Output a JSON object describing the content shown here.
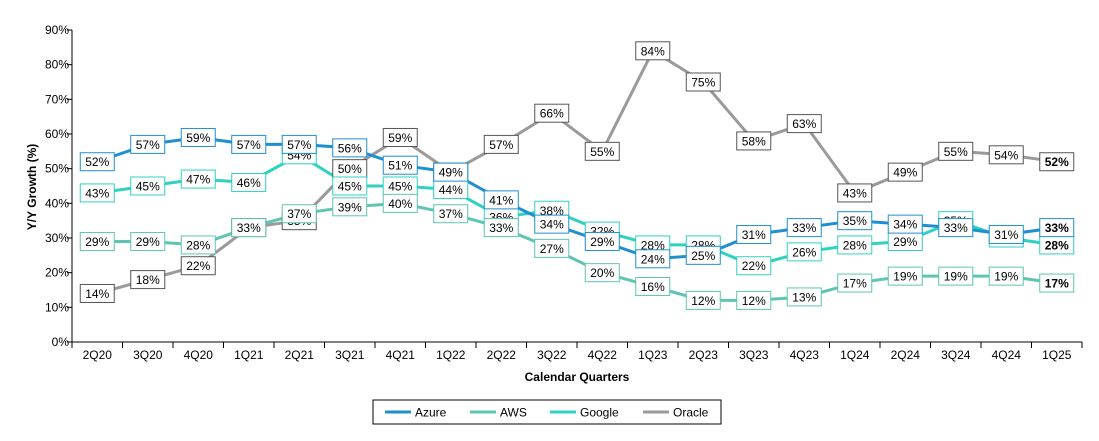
{
  "chart_data": {
    "type": "line",
    "ylabel": "Y/Y Growth (%)",
    "xlabel": "Calendar Quarters",
    "ylim": [
      0,
      90
    ],
    "yticks": [
      0,
      10,
      20,
      30,
      40,
      50,
      60,
      70,
      80,
      90
    ],
    "ytick_labels": [
      "0%",
      "10%",
      "20%",
      "30%",
      "40%",
      "50%",
      "60%",
      "70%",
      "80%",
      "90%"
    ],
    "categories": [
      "2Q20",
      "3Q20",
      "4Q20",
      "1Q21",
      "2Q21",
      "3Q21",
      "4Q21",
      "1Q22",
      "2Q22",
      "3Q22",
      "4Q22",
      "1Q23",
      "2Q23",
      "3Q23",
      "4Q23",
      "1Q24",
      "2Q24",
      "3Q24",
      "4Q24",
      "1Q25"
    ],
    "grid": false,
    "legend_position": "bottom",
    "series": [
      {
        "name": "Azure",
        "color": "#1f8fd0",
        "values": [
          52,
          57,
          59,
          57,
          57,
          56,
          51,
          49,
          41,
          34,
          29,
          24,
          25,
          31,
          33,
          35,
          34,
          33,
          31,
          33
        ]
      },
      {
        "name": "AWS",
        "color": "#5ec4b3",
        "values": [
          29,
          29,
          28,
          33,
          37,
          39,
          40,
          37,
          33,
          27,
          20,
          16,
          12,
          12,
          13,
          17,
          19,
          19,
          19,
          17
        ]
      },
      {
        "name": "Google",
        "color": "#2fd1c1",
        "values": [
          43,
          45,
          47,
          46,
          54,
          45,
          45,
          44,
          36,
          38,
          32,
          28,
          28,
          22,
          26,
          28,
          29,
          35,
          30,
          28
        ]
      },
      {
        "name": "Oracle",
        "color": "#9a9a9a",
        "values": [
          14,
          18,
          22,
          33,
          35,
          50,
          59,
          49,
          57,
          66,
          55,
          84,
          75,
          58,
          63,
          43,
          49,
          55,
          54,
          52
        ]
      }
    ],
    "data_label_suffix": "%",
    "bold_last_label": true
  }
}
